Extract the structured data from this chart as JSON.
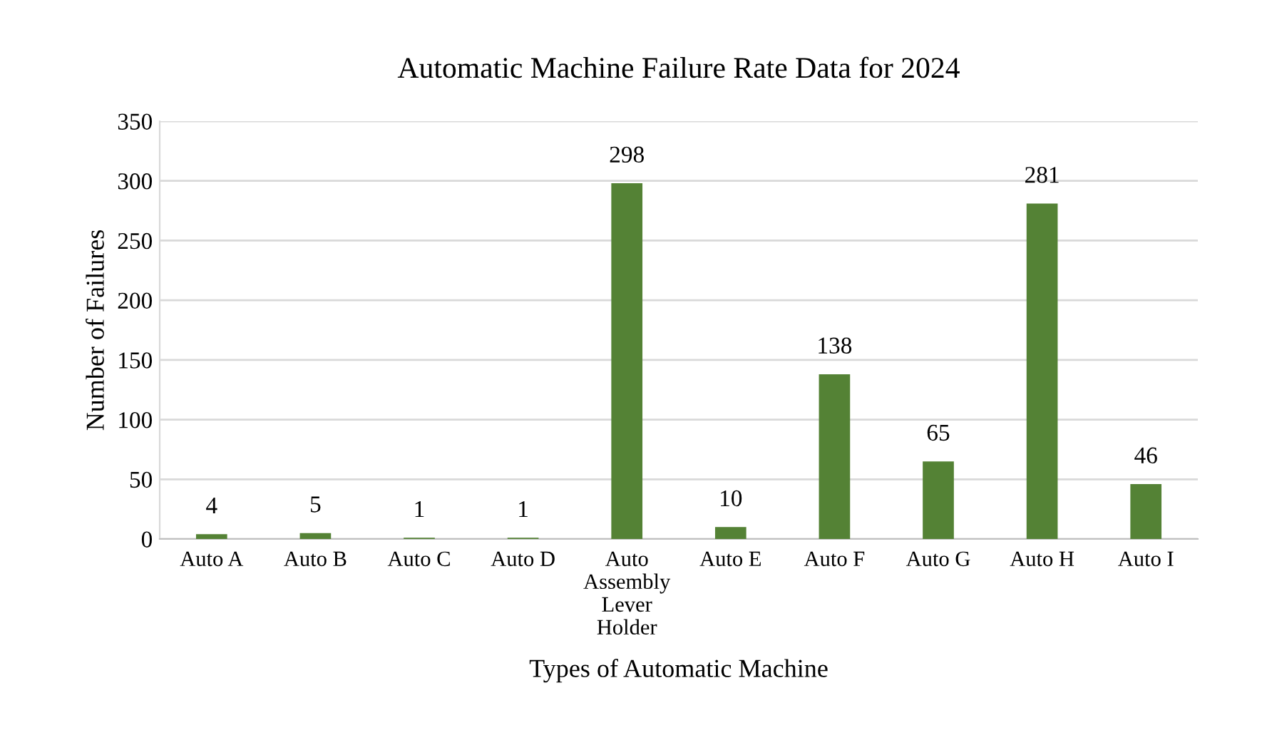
{
  "chart_data": {
    "type": "bar",
    "title": "Automatic Machine Failure Rate Data for 2024",
    "xlabel": "Types of Automatic Machine",
    "ylabel": "Number of Failures",
    "categories": [
      "Auto A",
      "Auto B",
      "Auto C",
      "Auto D",
      "Auto\nAssembly\nLever\nHolder",
      "Auto E",
      "Auto F",
      "Auto G",
      "Auto H",
      "Auto I"
    ],
    "values": [
      4,
      5,
      1,
      1,
      298,
      10,
      138,
      65,
      281,
      46
    ],
    "color": "#548235",
    "ylim": [
      0,
      350
    ],
    "yticks": [
      0,
      50,
      100,
      150,
      200,
      250,
      300,
      350
    ],
    "grid": "y",
    "data_labels": true
  }
}
